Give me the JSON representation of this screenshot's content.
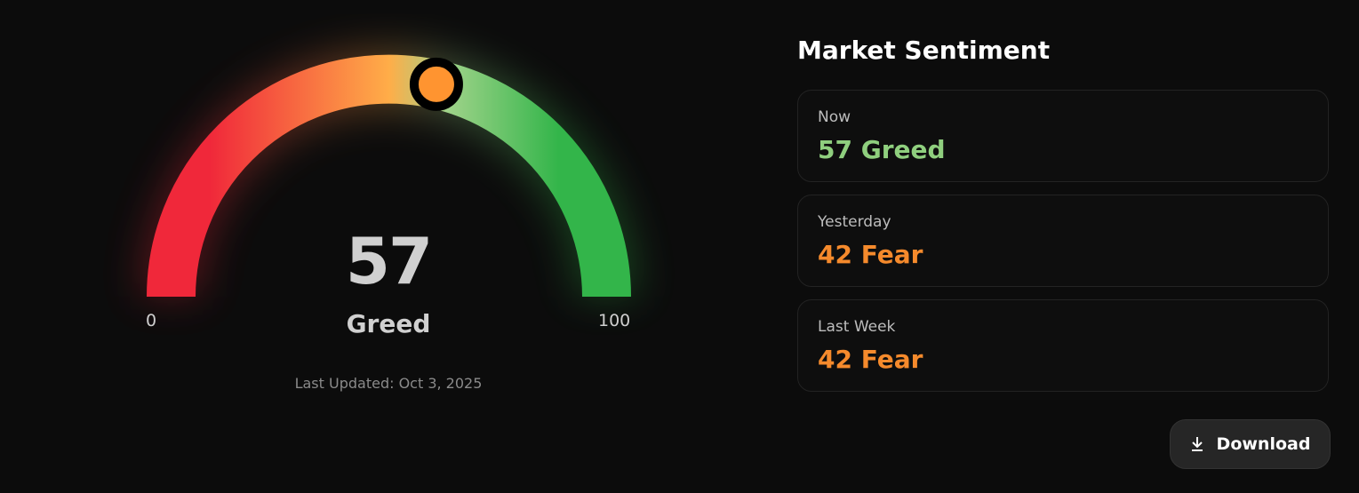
{
  "gauge": {
    "value": 57,
    "min_label": "0",
    "max_label": "100",
    "value_text": "57",
    "label": "Greed",
    "updated_label": "Last Updated:",
    "updated_date": "Oct 3, 2025",
    "colors": {
      "red": "#f0283a",
      "orange": "#ffad48",
      "light_green": "#a0d38a",
      "green": "#33b54a",
      "knob": "#ff9430"
    }
  },
  "sentiment": {
    "title": "Market Sentiment",
    "cards": [
      {
        "label": "Now",
        "value": "57 Greed",
        "color": "#8fcf7e"
      },
      {
        "label": "Yesterday",
        "value": "42 Fear",
        "color": "#f58a2c"
      },
      {
        "label": "Last Week",
        "value": "42 Fear",
        "color": "#f58a2c"
      }
    ],
    "download_label": "Download",
    "download_icon": "download-icon"
  }
}
